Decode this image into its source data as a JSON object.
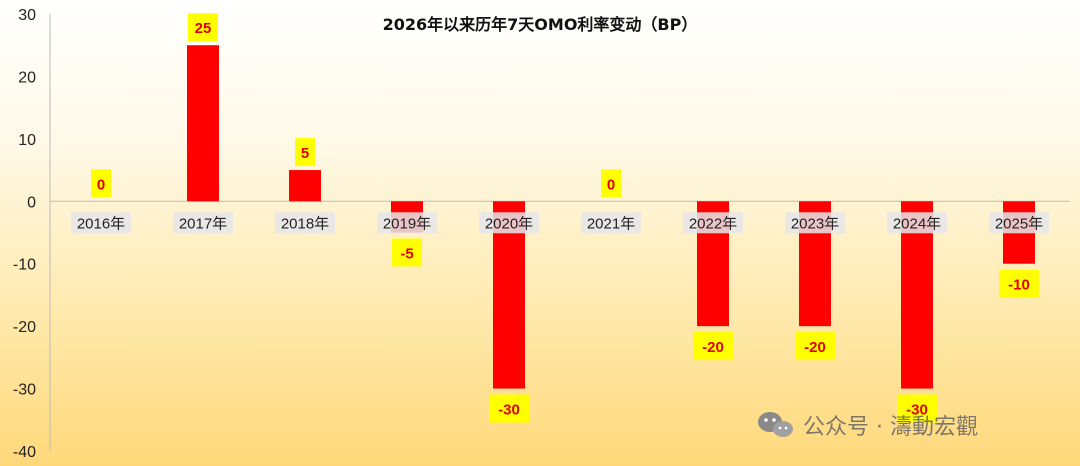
{
  "chart_data": {
    "type": "bar",
    "title": "2026年以来历年7天OMO利率变动（BP）",
    "categories": [
      "2016年",
      "2017年",
      "2018年",
      "2019年",
      "2020年",
      "2021年",
      "2022年",
      "2023年",
      "2024年",
      "2025年"
    ],
    "values": [
      0,
      25,
      5,
      -5,
      -30,
      0,
      -20,
      -20,
      -30,
      -10
    ],
    "ylim": [
      -40,
      30
    ],
    "yticks": [
      30,
      20,
      10,
      0,
      -10,
      -20,
      -30,
      -40
    ],
    "bar_color": "#ff0000",
    "label_bg_color": "#ffff00",
    "label_color": "#e00000",
    "grid": false,
    "legend": false
  },
  "watermark": {
    "text": "公众号 · 濤動宏觀",
    "icon": "wechat-icon"
  }
}
